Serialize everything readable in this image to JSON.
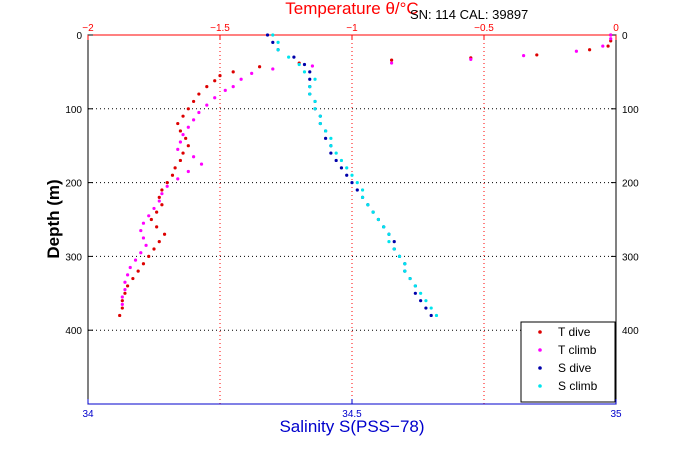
{
  "chart_data": {
    "type": "scatter",
    "title": "Temperature θ/°C",
    "annotation": "SN: 114  CAL: 39897",
    "ylabel": "Depth (m)",
    "xlabel": "Salinity S(PSS−78)",
    "grid": true,
    "legend_position": "bottom-right",
    "y_axis": {
      "range": [
        0,
        500
      ],
      "inverted": true,
      "ticks": [
        0,
        100,
        200,
        300,
        400
      ]
    },
    "temperature_axis": {
      "position": "top",
      "range": [
        -2,
        0
      ],
      "ticks": [
        -2,
        -1.5,
        -1,
        -0.5,
        0
      ],
      "tick_labels": [
        "−2",
        "−1.5",
        "−1",
        "−0.5",
        "0"
      ],
      "color": "#ff0000"
    },
    "salinity_axis": {
      "position": "bottom",
      "range": [
        34,
        35
      ],
      "ticks": [
        34,
        34.5,
        35
      ],
      "tick_labels": [
        "34",
        "34.5",
        "35"
      ],
      "color": "#0000cc"
    },
    "series": [
      {
        "name": "T dive",
        "axis": "temperature",
        "color": "#dd0000",
        "points": [
          [
            -0.02,
            0
          ],
          [
            -0.02,
            8
          ],
          [
            -0.03,
            15
          ],
          [
            -0.1,
            20
          ],
          [
            -0.3,
            27
          ],
          [
            -0.55,
            31
          ],
          [
            -0.85,
            34
          ],
          [
            -1.2,
            38
          ],
          [
            -1.35,
            43
          ],
          [
            -1.45,
            50
          ],
          [
            -1.5,
            55
          ],
          [
            -1.52,
            62
          ],
          [
            -1.55,
            70
          ],
          [
            -1.58,
            80
          ],
          [
            -1.6,
            90
          ],
          [
            -1.62,
            100
          ],
          [
            -1.64,
            110
          ],
          [
            -1.66,
            120
          ],
          [
            -1.65,
            130
          ],
          [
            -1.63,
            140
          ],
          [
            -1.62,
            150
          ],
          [
            -1.64,
            160
          ],
          [
            -1.65,
            170
          ],
          [
            -1.67,
            180
          ],
          [
            -1.68,
            190
          ],
          [
            -1.7,
            200
          ],
          [
            -1.72,
            210
          ],
          [
            -1.73,
            220
          ],
          [
            -1.72,
            230
          ],
          [
            -1.74,
            240
          ],
          [
            -1.76,
            250
          ],
          [
            -1.74,
            260
          ],
          [
            -1.71,
            270
          ],
          [
            -1.73,
            280
          ],
          [
            -1.75,
            290
          ],
          [
            -1.77,
            300
          ],
          [
            -1.79,
            310
          ],
          [
            -1.81,
            320
          ],
          [
            -1.83,
            330
          ],
          [
            -1.85,
            340
          ],
          [
            -1.86,
            350
          ],
          [
            -1.87,
            360
          ],
          [
            -1.87,
            370
          ],
          [
            -1.88,
            380
          ]
        ]
      },
      {
        "name": "T climb",
        "axis": "temperature",
        "color": "#ff00ff",
        "points": [
          [
            -0.02,
            0
          ],
          [
            -0.02,
            5
          ],
          [
            -0.05,
            15
          ],
          [
            -0.15,
            22
          ],
          [
            -0.35,
            28
          ],
          [
            -0.55,
            33
          ],
          [
            -0.85,
            38
          ],
          [
            -1.15,
            42
          ],
          [
            -1.3,
            46
          ],
          [
            -1.38,
            52
          ],
          [
            -1.42,
            60
          ],
          [
            -1.45,
            70
          ],
          [
            -1.48,
            75
          ],
          [
            -1.52,
            85
          ],
          [
            -1.55,
            95
          ],
          [
            -1.58,
            105
          ],
          [
            -1.6,
            115
          ],
          [
            -1.62,
            125
          ],
          [
            -1.64,
            135
          ],
          [
            -1.65,
            145
          ],
          [
            -1.66,
            155
          ],
          [
            -1.6,
            165
          ],
          [
            -1.57,
            175
          ],
          [
            -1.62,
            185
          ],
          [
            -1.66,
            195
          ],
          [
            -1.7,
            205
          ],
          [
            -1.72,
            215
          ],
          [
            -1.73,
            225
          ],
          [
            -1.75,
            235
          ],
          [
            -1.77,
            245
          ],
          [
            -1.79,
            255
          ],
          [
            -1.8,
            265
          ],
          [
            -1.79,
            275
          ],
          [
            -1.78,
            285
          ],
          [
            -1.8,
            295
          ],
          [
            -1.82,
            305
          ],
          [
            -1.84,
            315
          ],
          [
            -1.85,
            325
          ],
          [
            -1.86,
            335
          ],
          [
            -1.86,
            345
          ],
          [
            -1.87,
            355
          ],
          [
            -1.87,
            365
          ]
        ]
      },
      {
        "name": "S dive",
        "axis": "salinity",
        "color": "#0000aa",
        "points": [
          [
            34.34,
            0
          ],
          [
            34.35,
            10
          ],
          [
            34.36,
            20
          ],
          [
            34.39,
            30
          ],
          [
            34.41,
            40
          ],
          [
            34.42,
            50
          ],
          [
            34.42,
            60
          ],
          [
            34.42,
            70
          ],
          [
            34.42,
            80
          ],
          [
            34.43,
            90
          ],
          [
            34.43,
            100
          ],
          [
            34.44,
            110
          ],
          [
            34.44,
            120
          ],
          [
            34.45,
            130
          ],
          [
            34.45,
            140
          ],
          [
            34.46,
            150
          ],
          [
            34.46,
            160
          ],
          [
            34.47,
            170
          ],
          [
            34.48,
            180
          ],
          [
            34.49,
            190
          ],
          [
            34.5,
            200
          ],
          [
            34.51,
            210
          ],
          [
            34.52,
            220
          ],
          [
            34.53,
            230
          ],
          [
            34.54,
            240
          ],
          [
            34.55,
            250
          ],
          [
            34.56,
            260
          ],
          [
            34.57,
            270
          ],
          [
            34.58,
            280
          ],
          [
            34.58,
            290
          ],
          [
            34.59,
            300
          ],
          [
            34.6,
            310
          ],
          [
            34.6,
            320
          ],
          [
            34.61,
            330
          ],
          [
            34.62,
            340
          ],
          [
            34.62,
            350
          ],
          [
            34.63,
            360
          ],
          [
            34.64,
            370
          ],
          [
            34.65,
            380
          ]
        ]
      },
      {
        "name": "S climb",
        "axis": "salinity",
        "color": "#00e5ee",
        "points": [
          [
            34.35,
            0
          ],
          [
            34.36,
            10
          ],
          [
            34.36,
            20
          ],
          [
            34.38,
            30
          ],
          [
            34.4,
            40
          ],
          [
            34.41,
            50
          ],
          [
            34.43,
            60
          ],
          [
            34.42,
            70
          ],
          [
            34.42,
            80
          ],
          [
            34.43,
            90
          ],
          [
            34.43,
            100
          ],
          [
            34.44,
            110
          ],
          [
            34.44,
            120
          ],
          [
            34.45,
            130
          ],
          [
            34.46,
            140
          ],
          [
            34.46,
            150
          ],
          [
            34.47,
            160
          ],
          [
            34.48,
            170
          ],
          [
            34.49,
            180
          ],
          [
            34.5,
            190
          ],
          [
            34.51,
            200
          ],
          [
            34.52,
            210
          ],
          [
            34.52,
            220
          ],
          [
            34.53,
            230
          ],
          [
            34.54,
            240
          ],
          [
            34.55,
            250
          ],
          [
            34.56,
            260
          ],
          [
            34.57,
            270
          ],
          [
            34.57,
            280
          ],
          [
            34.58,
            290
          ],
          [
            34.59,
            300
          ],
          [
            34.6,
            310
          ],
          [
            34.6,
            320
          ],
          [
            34.61,
            330
          ],
          [
            34.62,
            340
          ],
          [
            34.63,
            350
          ],
          [
            34.64,
            360
          ],
          [
            34.65,
            370
          ],
          [
            34.66,
            380
          ]
        ]
      }
    ]
  }
}
